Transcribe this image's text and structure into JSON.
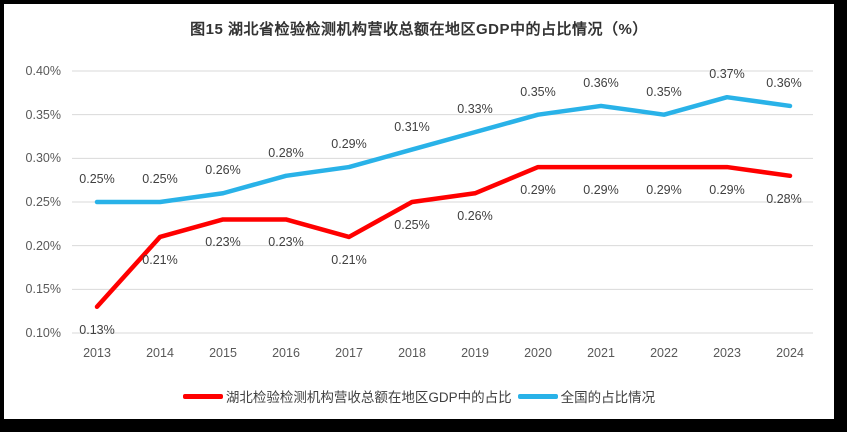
{
  "frame": {
    "border_color": "#000000",
    "panel_bg": "#FFFFFF"
  },
  "chart_data": {
    "type": "line",
    "title": "图15  湖北省检验检测机构营收总额在地区GDP中的占比情况（%）",
    "title_color": "#333333",
    "categories": [
      "2013",
      "2014",
      "2015",
      "2016",
      "2017",
      "2018",
      "2019",
      "2020",
      "2021",
      "2022",
      "2023",
      "2024"
    ],
    "series": [
      {
        "name": "湖北检验检测机构营收总额在地区GDP中的占比",
        "semantic": "hubei-gdp-share",
        "color": "#FF0000",
        "values": [
          0.13,
          0.21,
          0.23,
          0.23,
          0.21,
          0.25,
          0.26,
          0.29,
          0.29,
          0.29,
          0.29,
          0.28
        ],
        "point_labels": [
          "0.13%",
          "0.21%",
          "0.23%",
          "0.23%",
          "0.21%",
          "0.25%",
          "0.26%",
          "0.29%",
          "0.29%",
          "0.29%",
          "0.29%",
          "0.28%"
        ],
        "label_position": "below"
      },
      {
        "name": "全国的占比情况",
        "semantic": "national-gdp-share",
        "color": "#29B2E8",
        "values": [
          0.25,
          0.25,
          0.26,
          0.28,
          0.29,
          0.31,
          0.33,
          0.35,
          0.36,
          0.35,
          0.37,
          0.36
        ],
        "point_labels": [
          "0.25%",
          "0.25%",
          "0.26%",
          "0.28%",
          "0.29%",
          "0.31%",
          "0.33%",
          "0.35%",
          "0.36%",
          "0.35%",
          "0.37%",
          "0.36%"
        ],
        "label_position": "above"
      }
    ],
    "y_axis": {
      "min": 0.1,
      "max": 0.4,
      "step": 0.05,
      "tick_labels": [
        "0.40%",
        "0.35%",
        "0.30%",
        "0.25%",
        "0.20%",
        "0.15%",
        "0.10%"
      ]
    },
    "grid": true,
    "grid_color": "#D9D9D9",
    "axis_label_color": "#595959",
    "data_label_color": "#404040",
    "legend_position": "bottom",
    "ylim": [
      0.1,
      0.4
    ]
  }
}
